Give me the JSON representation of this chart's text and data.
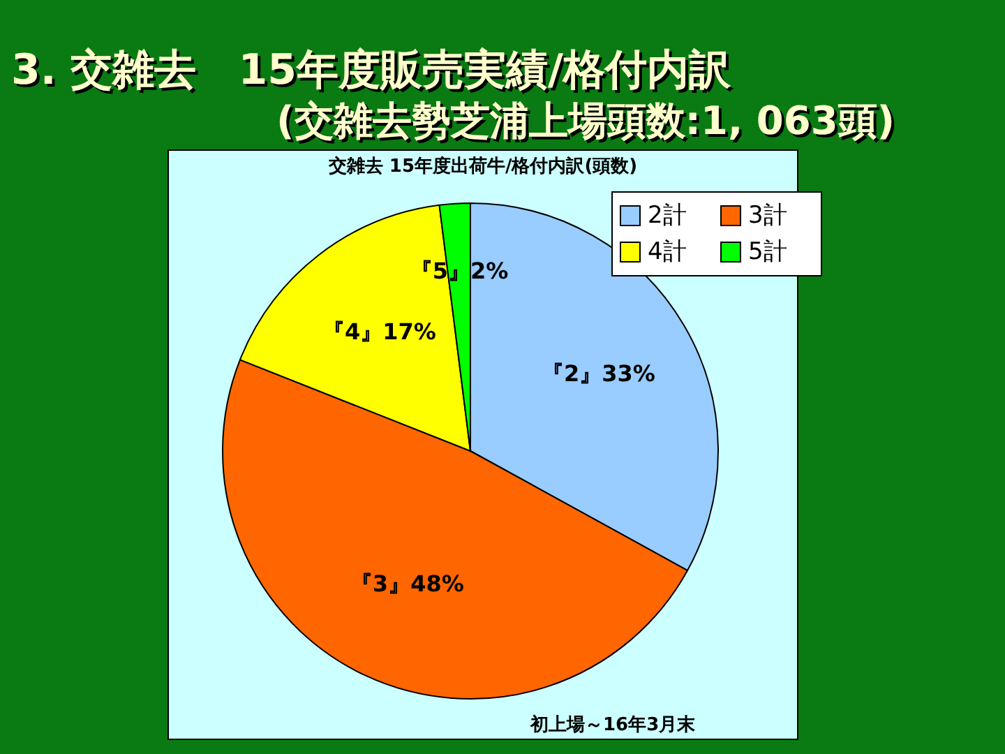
{
  "chart_data": {
    "type": "pie",
    "title": "3. 交雑去　15年度販売実績/格付内訳",
    "subtitle": "(交雑去勢芝浦上場頭数:1, 063頭)",
    "annotations": [
      "交雑去 15年度出荷牛/格付内訳(頭数)",
      "初上場～16年3月末"
    ],
    "categories": [
      "2計",
      "3計",
      "4計",
      "5計"
    ],
    "values": [
      33,
      48,
      17,
      2
    ],
    "colors": [
      "#99ccff",
      "#ff6600",
      "#ffff00",
      "#00ff00"
    ],
    "value_labels": [
      "『2』33%",
      "『3』48%",
      "『4』17%",
      "『5』2%"
    ],
    "legend": "top right"
  }
}
